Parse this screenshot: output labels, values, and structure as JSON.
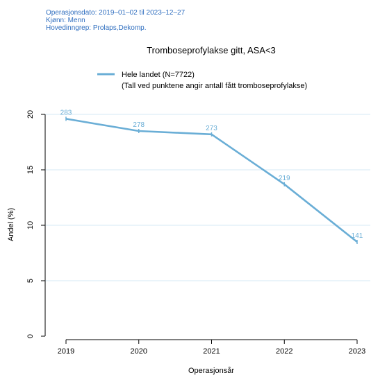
{
  "header": {
    "date_line": "Operasjonsdato: 2019–01–02 til 2023–12–27",
    "gender_line": "Kjønn: Menn",
    "group_line": "Hovedinngrep: Prolaps,Dekomp."
  },
  "colors": {
    "meta_text": "#2f6ebf",
    "series": "#6aaed6",
    "grid": "#d6e8f5",
    "axis": "#000000"
  },
  "chart_data": {
    "type": "line",
    "title": "Tromboseprofylakse gitt, ASA<3",
    "xlabel": "Operasjonsår",
    "ylabel": "Andel (%)",
    "ylim": [
      0,
      20
    ],
    "yticks": [
      0,
      5,
      10,
      15,
      20
    ],
    "ytick_labels": [
      "0",
      "5",
      "10",
      "15",
      "20"
    ],
    "grid": true,
    "legend_placement": "top-center",
    "categories": [
      "2019",
      "2020",
      "2021",
      "2022",
      "2023"
    ],
    "series": [
      {
        "name": "Hele landet (N=7722)",
        "values": [
          19.6,
          18.5,
          18.2,
          13.7,
          8.5
        ],
        "point_labels": [
          "283",
          "278",
          "273",
          "219",
          "141"
        ]
      }
    ],
    "legend_note": "(Tall ved punktene angir antall fått tromboseprofylakse)"
  }
}
